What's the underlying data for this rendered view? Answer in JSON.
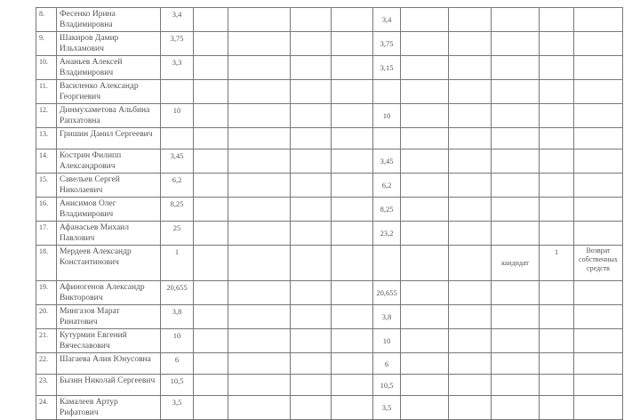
{
  "rows": [
    {
      "num": "8.",
      "name": "Фесенко Ирина Владимировна",
      "amount": "3,4",
      "amount2": "3,4"
    },
    {
      "num": "9.",
      "name": "Шакиров Дамир Ильхамович",
      "amount": "3,75",
      "amount2": "3,75"
    },
    {
      "num": "10.",
      "name": "Ананьев Алексей Владимирович",
      "amount": "3,3",
      "amount2": "3,15"
    },
    {
      "num": "11.",
      "name": "Василенко Александр Георгиевич",
      "amount": "",
      "amount2": ""
    },
    {
      "num": "12.",
      "name": "Динмухаметова Альбина Рапхатовна",
      "amount": "10",
      "amount2": "10"
    },
    {
      "num": "13.",
      "name": "Гришин Данил Сергеевич",
      "amount": "",
      "amount2": ""
    },
    {
      "num": "14.",
      "name": "Кострин Филипп Александрович",
      "amount": "3,45",
      "amount2": "3,45"
    },
    {
      "num": "15.",
      "name": "Савельев Сергей Николаевич",
      "amount": "6,2",
      "amount2": "6,2"
    },
    {
      "num": "16.",
      "name": "Анисимов Олег Владимирович",
      "amount": "8,25",
      "amount2": "8,25"
    },
    {
      "num": "17.",
      "name": "Афанасьев Михаил Павлович",
      "amount": "25",
      "amount2": "23,2"
    },
    {
      "num": "18.",
      "name": "Мердеев Александр Константинович",
      "amount": "1",
      "amount2": "",
      "returned_to": "кандидат",
      "returned_amount": "1",
      "return_reason": "Возврат собственных средств"
    },
    {
      "num": "19.",
      "name": "Афиногенов Александр Викторович",
      "amount": "20,655",
      "amount2": "20,655"
    },
    {
      "num": "20.",
      "name": "Мингазов Марат Ринатович",
      "amount": "3,8",
      "amount2": "3,8"
    },
    {
      "num": "21.",
      "name": "Кутурмин Евгений Вячеславович",
      "amount": "10",
      "amount2": "10"
    },
    {
      "num": "22.",
      "name": "Шагаева Алия Юнусовна",
      "amount": "6",
      "amount2": "6"
    },
    {
      "num": "23.",
      "name": "Бызин Николай Сергеевич",
      "amount": "10,5",
      "amount2": "10,5"
    },
    {
      "num": "24.",
      "name": "Камалеев Артур Рифатович",
      "amount": "3,5",
      "amount2": "3,5"
    }
  ]
}
